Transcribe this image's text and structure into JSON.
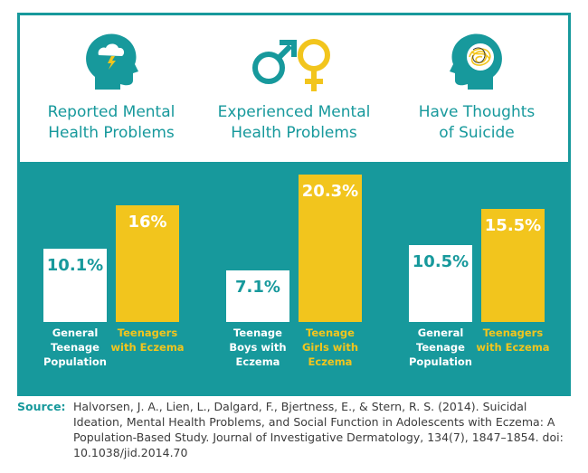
{
  "colors": {
    "teal": "#17999c",
    "white": "#ffffff",
    "yellow": "#f2c51d"
  },
  "panels": [
    {
      "title_line1": "Reported Mental",
      "title_line2": "Health Problems",
      "icon": "head-storm-icon"
    },
    {
      "title_line1": "Experienced Mental",
      "title_line2": "Health Problems",
      "icon": "gender-symbols-icon"
    },
    {
      "title_line1": "Have Thoughts",
      "title_line2": "of Suicide",
      "icon": "head-tangle-icon"
    }
  ],
  "chart_data": [
    {
      "type": "bar",
      "title": "Reported Mental Health Problems",
      "categories": [
        "General Teenage Population",
        "Teenagers with Eczema"
      ],
      "category_lines": [
        [
          "General",
          "Teenage",
          "Population"
        ],
        [
          "Teenagers",
          "with Eczema"
        ]
      ],
      "values": [
        10.1,
        16
      ],
      "value_labels": [
        "10.1%",
        "16%"
      ],
      "bar_colors": [
        "#ffffff",
        "#f2c51d"
      ],
      "ylim": [
        0,
        25
      ]
    },
    {
      "type": "bar",
      "title": "Experienced Mental Health Problems",
      "categories": [
        "Teenage Boys with Eczema",
        "Teenage Girls with Eczema"
      ],
      "category_lines": [
        [
          "Teenage",
          "Boys with",
          "Eczema"
        ],
        [
          "Teenage",
          "Girls with",
          "Eczema"
        ]
      ],
      "values": [
        7.1,
        20.3
      ],
      "value_labels": [
        "7.1%",
        "20.3%"
      ],
      "bar_colors": [
        "#ffffff",
        "#f2c51d"
      ],
      "ylim": [
        0,
        25
      ]
    },
    {
      "type": "bar",
      "title": "Have Thoughts of Suicide",
      "categories": [
        "General Teenage Population",
        "Teenagers with Eczema"
      ],
      "category_lines": [
        [
          "General",
          "Teenage",
          "Population"
        ],
        [
          "Teenagers",
          "with Eczema"
        ]
      ],
      "values": [
        10.5,
        15.5
      ],
      "value_labels": [
        "10.5%",
        "15.5%"
      ],
      "bar_colors": [
        "#ffffff",
        "#f2c51d"
      ],
      "ylim": [
        0,
        25
      ]
    }
  ],
  "source": {
    "label": "Source:",
    "text": "Halvorsen, J. A., Lien, L., Dalgard, F., Bjertness, E., & Stern, R. S. (2014). Suicidal Ideation, Mental Health Problems, and Social Function in Adolescents with Eczema: A Population-Based Study. Journal of Investigative Dermatology, 134(7), 1847–1854. doi: 10.1038/jid.2014.70"
  }
}
